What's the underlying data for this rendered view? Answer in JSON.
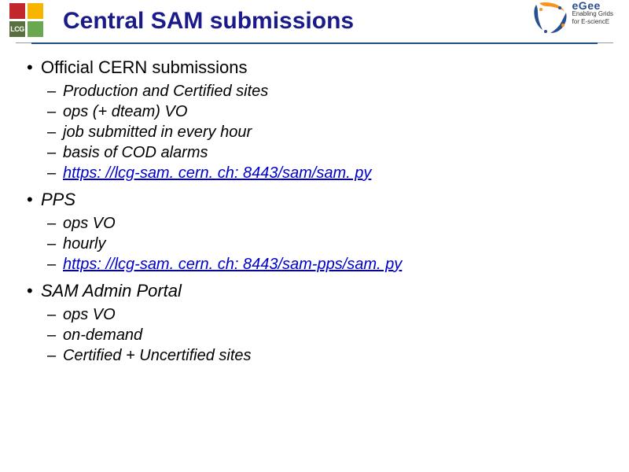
{
  "header": {
    "title": "Central SAM submissions",
    "title_color": "#1a1a8a",
    "underline_color": "#1a4f8a",
    "logo_left": {
      "label": "LCG",
      "colors": {
        "red": "#c1272d",
        "yellow": "#f7b500",
        "green_dark": "#5a6f3f",
        "green": "#6aa84f"
      }
    },
    "logo_right": {
      "brand": "eGee",
      "tagline1": "Enabling Grids",
      "tagline2": "for E-sciencE",
      "blue": "#2a4f8f",
      "orange": "#f7941e"
    }
  },
  "bullets": [
    {
      "text": "Official CERN submissions",
      "italic": false,
      "sub": [
        {
          "text": "Production and Certified sites",
          "link": false
        },
        {
          "text": "ops (+ dteam) VO",
          "link": false
        },
        {
          "text": "job submitted in every hour",
          "link": false
        },
        {
          "text": "basis of COD alarms",
          "link": false
        },
        {
          "text": "https: //lcg-sam. cern. ch: 8443/sam/sam. py",
          "link": true
        }
      ]
    },
    {
      "text": "PPS",
      "italic": true,
      "sub": [
        {
          "text": "ops VO",
          "link": false
        },
        {
          "text": "hourly",
          "link": false
        },
        {
          "text": "https: //lcg-sam. cern. ch: 8443/sam-pps/sam. py",
          "link": true
        }
      ]
    },
    {
      "text": "SAM Admin Portal",
      "italic": true,
      "sub": [
        {
          "text": "ops VO",
          "link": false
        },
        {
          "text": "on-demand",
          "link": false
        },
        {
          "text": "Certified + Uncertified sites",
          "link": false
        }
      ]
    }
  ],
  "colors": {
    "text": "#000000",
    "link": "#0000cc",
    "background": "#ffffff"
  },
  "fonts": {
    "title_size": 30,
    "bullet_size": 22,
    "sub_size": 20,
    "family": "Arial"
  }
}
